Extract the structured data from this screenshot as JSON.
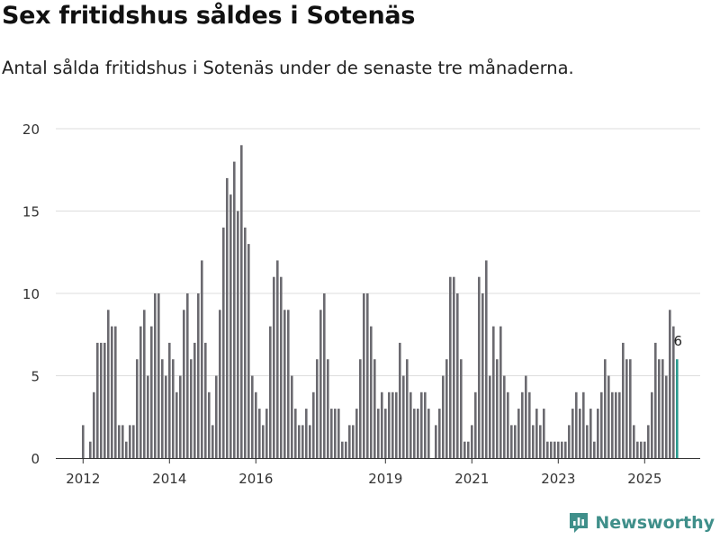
{
  "title": "Sex fritidshus såldes i Sotenäs",
  "subtitle": "Antal sålda fritidshus i Sotenäs under de senaste tre månaderna.",
  "brand": {
    "name": "Newsworthy",
    "icon": "newsworthy-logo-icon"
  },
  "colors": {
    "bar": "#6b6a70",
    "highlight": "#2a9a8e",
    "grid": "#dddddd",
    "axis": "#333333",
    "brand": "#3f8f8a"
  },
  "chart_data": {
    "type": "bar",
    "title": "Sex fritidshus såldes i Sotenäs",
    "xlabel": "",
    "ylabel": "",
    "ylim": [
      0,
      20
    ],
    "yticks": [
      0,
      5,
      10,
      15,
      20
    ],
    "xticks": [
      "2012",
      "2014",
      "2016",
      "2019",
      "2021",
      "2023",
      "2025"
    ],
    "xtick_positions": {
      "2012": 0,
      "2014": 24,
      "2016": 48,
      "2019": 84,
      "2021": 108,
      "2023": 132,
      "2025": 156
    },
    "start": "2012-01",
    "frequency": "monthly",
    "values": [
      2,
      0,
      1,
      4,
      7,
      7,
      7,
      9,
      8,
      8,
      2,
      2,
      1,
      2,
      2,
      6,
      8,
      9,
      5,
      8,
      10,
      10,
      6,
      5,
      7,
      6,
      4,
      5,
      9,
      10,
      6,
      7,
      10,
      12,
      7,
      4,
      2,
      5,
      9,
      14,
      17,
      16,
      18,
      15,
      19,
      14,
      13,
      5,
      4,
      3,
      2,
      3,
      8,
      11,
      12,
      11,
      9,
      9,
      5,
      3,
      2,
      2,
      3,
      2,
      4,
      6,
      9,
      10,
      6,
      3,
      3,
      3,
      1,
      1,
      2,
      2,
      3,
      6,
      10,
      10,
      8,
      6,
      3,
      4,
      3,
      4,
      4,
      4,
      7,
      5,
      6,
      4,
      3,
      3,
      4,
      4,
      3,
      0,
      2,
      3,
      5,
      6,
      11,
      11,
      10,
      6,
      1,
      1,
      2,
      4,
      11,
      10,
      12,
      5,
      8,
      6,
      8,
      5,
      4,
      2,
      2,
      3,
      4,
      5,
      4,
      2,
      3,
      2,
      3,
      1,
      1,
      1,
      1,
      1,
      1,
      2,
      3,
      4,
      3,
      4,
      2,
      3,
      1,
      3,
      4,
      6,
      5,
      4,
      4,
      4,
      7,
      6,
      6,
      2,
      1,
      1,
      1,
      2,
      4,
      7,
      6,
      6,
      5,
      9,
      8,
      6
    ],
    "highlight_last": true,
    "annotation": {
      "label": "6"
    }
  }
}
